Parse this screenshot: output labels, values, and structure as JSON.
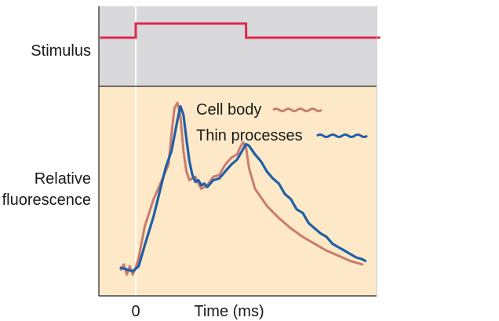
{
  "chart_data": {
    "type": "line",
    "panels": {
      "stimulus": {
        "ylabel": "Stimulus"
      },
      "response": {
        "ylabel": [
          "Relative",
          "fluorescence"
        ]
      }
    },
    "xlabel": "Time (ms)",
    "x_ticks": [
      "0"
    ],
    "grid": false,
    "legend_position": "top-right",
    "colors": {
      "stimulus_bg": "#d9d9db",
      "response_bg": "#fde9c7",
      "stimulus_line": "#e0284b",
      "cell_body": "#c97b6e",
      "thin_processes": "#1f5fa8"
    },
    "stimulus": {
      "x": [
        -0.6,
        0.0,
        0.0,
        1.85,
        1.85,
        4.1
      ],
      "y": [
        0,
        0,
        1,
        1,
        0,
        0
      ]
    },
    "series": [
      {
        "name": "Cell body",
        "x": [
          -0.25,
          -0.2,
          -0.15,
          -0.1,
          -0.05,
          0.0,
          0.05,
          0.15,
          0.3,
          0.45,
          0.55,
          0.6,
          0.65,
          0.7,
          0.75,
          0.8,
          0.85,
          0.9,
          1.0,
          1.05,
          1.1,
          1.2,
          1.3,
          1.4,
          1.5,
          1.6,
          1.7,
          1.75,
          1.8,
          1.85,
          1.9,
          2.0,
          2.2,
          2.4,
          2.6,
          2.8,
          3.0,
          3.2,
          3.4,
          3.6,
          3.8
        ],
        "y": [
          0.03,
          0.06,
          0.0,
          0.05,
          0.0,
          0.04,
          0.1,
          0.28,
          0.44,
          0.56,
          0.64,
          0.82,
          0.97,
          1.0,
          0.92,
          0.72,
          0.6,
          0.55,
          0.57,
          0.53,
          0.5,
          0.52,
          0.57,
          0.58,
          0.64,
          0.68,
          0.7,
          0.74,
          0.77,
          0.74,
          0.62,
          0.5,
          0.4,
          0.33,
          0.27,
          0.22,
          0.18,
          0.14,
          0.11,
          0.08,
          0.06
        ]
      },
      {
        "name": "Thin processes",
        "x": [
          -0.25,
          -0.15,
          -0.05,
          0.05,
          0.15,
          0.3,
          0.4,
          0.5,
          0.6,
          0.7,
          0.75,
          0.8,
          0.85,
          0.9,
          0.95,
          1.0,
          1.05,
          1.1,
          1.15,
          1.2,
          1.3,
          1.4,
          1.5,
          1.6,
          1.7,
          1.8,
          1.85,
          1.9,
          2.0,
          2.1,
          2.2,
          2.3,
          2.4,
          2.5,
          2.6,
          2.7,
          2.8,
          2.9,
          3.0,
          3.1,
          3.2,
          3.3,
          3.4,
          3.5,
          3.6,
          3.7,
          3.8,
          3.85
        ],
        "y": [
          0.04,
          0.03,
          0.02,
          0.05,
          0.17,
          0.34,
          0.48,
          0.62,
          0.72,
          0.9,
          0.98,
          0.93,
          0.79,
          0.66,
          0.58,
          0.54,
          0.55,
          0.52,
          0.53,
          0.51,
          0.55,
          0.56,
          0.6,
          0.64,
          0.67,
          0.73,
          0.76,
          0.75,
          0.7,
          0.66,
          0.6,
          0.56,
          0.53,
          0.47,
          0.44,
          0.38,
          0.36,
          0.3,
          0.27,
          0.24,
          0.22,
          0.18,
          0.16,
          0.14,
          0.12,
          0.1,
          0.09,
          0.08
        ]
      }
    ]
  }
}
